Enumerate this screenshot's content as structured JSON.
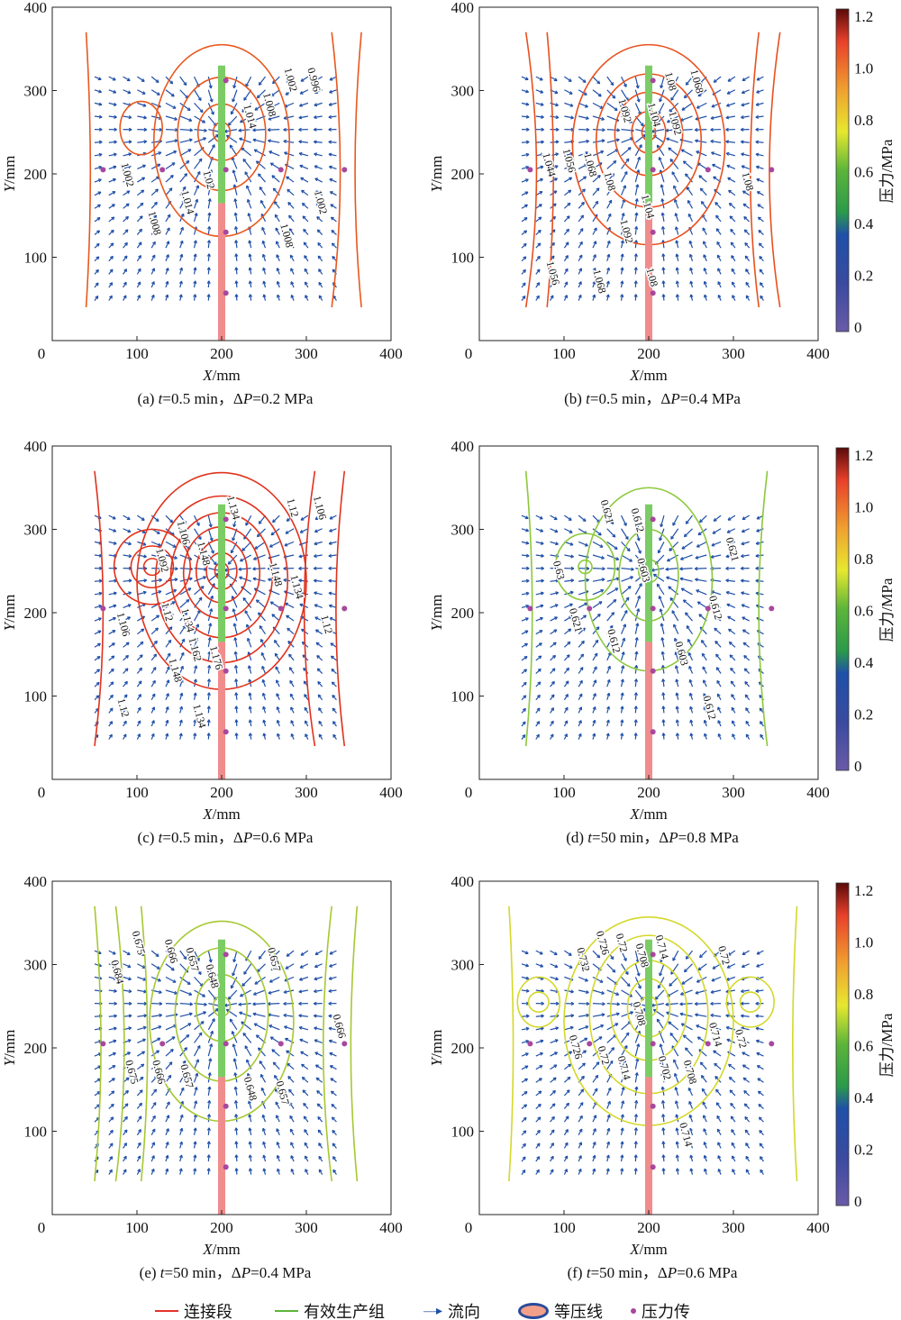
{
  "legend": {
    "connection": "连接段",
    "effective": "有效生产组",
    "flow": "流向",
    "isobar": "等压线",
    "sensor": "压力传"
  },
  "colors": {
    "connection": "#e8312a",
    "effective": "#5cb53a",
    "flow": "#1f4fa8",
    "sensor": "#a8479e"
  },
  "axis": {
    "xlabel_sym": "X",
    "xlabel_unit": "/mm",
    "ylabel_sym": "Y",
    "ylabel_unit": "/mm",
    "xticks": [
      "0",
      "100",
      "200",
      "300",
      "400"
    ],
    "yticks": [
      "100",
      "200",
      "300",
      "400"
    ]
  },
  "colorbar": {
    "label": "压力/MPa",
    "ticks": [
      "0",
      "0.2",
      "0.4",
      "0.6",
      "0.8",
      "1.0",
      "1.2"
    ]
  },
  "chart_data": [
    {
      "type": "contour",
      "tag": "(a)",
      "t_sym": "t",
      "t_val": "=0.5 min，Δ",
      "p_sym": "P",
      "p_val": "=0.2 MPa",
      "color": "#e8581e",
      "ellipses": [
        [
          200,
          250,
          10,
          12
        ],
        [
          200,
          250,
          28,
          34
        ],
        [
          200,
          248,
          52,
          68
        ],
        [
          200,
          240,
          80,
          115
        ],
        [
          105,
          255,
          25,
          32
        ]
      ],
      "vlines": [
        [
          330,
          20
        ],
        [
          365,
          -15
        ],
        [
          40,
          10
        ]
      ],
      "labels": [
        [
          "1.002",
          85,
          198
        ],
        [
          "1.02",
          181,
          192
        ],
        [
          "1.014",
          156,
          165
        ],
        [
          "1.008",
          117,
          140
        ],
        [
          "1.014",
          238,
          268
        ],
        [
          "1.008",
          254,
          282
        ],
        [
          "1.002",
          268,
          312
        ],
        [
          "0.996",
          305,
          312
        ],
        [
          "1.002",
          313,
          165
        ],
        [
          "1.008",
          273,
          125
        ]
      ]
    },
    {
      "type": "contour",
      "tag": "(b)",
      "t_sym": "t",
      "t_val": "=0.5 min，Δ",
      "p_sym": "P",
      "p_val": "=0.4 MPa",
      "color": "#e8501e",
      "ellipses": [
        [
          200,
          250,
          8,
          10
        ],
        [
          200,
          250,
          20,
          25
        ],
        [
          200,
          248,
          40,
          50
        ],
        [
          200,
          240,
          62,
          80
        ],
        [
          200,
          235,
          90,
          120
        ]
      ],
      "vlines": [
        [
          55,
          25
        ],
        [
          80,
          15
        ],
        [
          330,
          -20
        ],
        [
          355,
          -25
        ]
      ],
      "labels": [
        [
          "1.044",
          85,
          210
        ],
        [
          "1.056",
          110,
          215
        ],
        [
          "1.068",
          125,
          210
        ],
        [
          "1.08",
          138,
          190
        ],
        [
          "1.092",
          168,
          275
        ],
        [
          "1.104",
          212,
          270
        ],
        [
          "1.092",
          218,
          260
        ],
        [
          "1.08",
          222,
          310
        ],
        [
          "1.068",
          253,
          310
        ],
        [
          "1.104",
          192,
          160
        ],
        [
          "1.092",
          173,
          130
        ],
        [
          "1.08",
          200,
          75
        ],
        [
          "1.068",
          138,
          70
        ],
        [
          "1.056",
          83,
          80
        ],
        [
          "1.08",
          313,
          190
        ]
      ]
    },
    {
      "type": "contour",
      "tag": "(c)",
      "t_sym": "t",
      "t_val": "=0.5 min，Δ",
      "p_sym": "P",
      "p_val": "=0.6 MPa",
      "color": "#e0321c",
      "ellipses": [
        [
          200,
          250,
          8,
          10
        ],
        [
          200,
          250,
          18,
          22
        ],
        [
          200,
          250,
          30,
          38
        ],
        [
          200,
          248,
          45,
          55
        ],
        [
          200,
          245,
          60,
          75
        ],
        [
          200,
          240,
          78,
          100
        ],
        [
          200,
          238,
          100,
          130
        ],
        [
          118,
          255,
          10,
          10
        ],
        [
          118,
          255,
          25,
          25
        ],
        [
          118,
          255,
          45,
          45
        ]
      ],
      "vlines": [
        [
          50,
          20
        ],
        [
          310,
          -25
        ],
        [
          345,
          -20
        ]
      ],
      "labels": [
        [
          "1.106",
          80,
          185
        ],
        [
          "1.12",
          140,
          200
        ],
        [
          "1.106",
          140,
          295
        ],
        [
          "1.092",
          137,
          262
        ],
        [
          "1.134",
          210,
          325
        ],
        [
          "1.148",
          175,
          270
        ],
        [
          "1.12",
          280,
          325
        ],
        [
          "1.106",
          312,
          325
        ],
        [
          "1.148",
          260,
          245
        ],
        [
          "1.134",
          285,
          230
        ],
        [
          "1.12",
          320,
          185
        ],
        [
          "1.134",
          148,
          190
        ],
        [
          "1.162",
          158,
          155
        ],
        [
          "1.176",
          188,
          145
        ],
        [
          "1.148",
          150,
          130
        ],
        [
          "1.12",
          80,
          85
        ],
        [
          "1.134",
          170,
          75
        ]
      ]
    },
    {
      "type": "contour",
      "tag": "(d)",
      "t_sym": "t",
      "t_val": "=50 min，Δ",
      "p_sym": "P",
      "p_val": "=0.8 MPa",
      "color": "#8cc83c",
      "ellipses": [
        [
          200,
          250,
          12,
          14
        ],
        [
          200,
          245,
          35,
          55
        ],
        [
          200,
          240,
          75,
          110
        ],
        [
          125,
          255,
          8,
          8
        ],
        [
          125,
          255,
          35,
          40
        ]
      ],
      "vlines": [
        [
          55,
          15
        ],
        [
          340,
          -20
        ]
      ],
      "labels": [
        [
          "0.621",
          147,
          320
        ],
        [
          "0.612",
          183,
          310
        ],
        [
          "0.63",
          90,
          250
        ],
        [
          "0.603",
          190,
          250
        ],
        [
          "0.621",
          295,
          275
        ],
        [
          "0.612",
          275,
          205
        ],
        [
          "0.621",
          110,
          190
        ],
        [
          "0.612",
          155,
          165
        ],
        [
          "0.603",
          235,
          150
        ],
        [
          "0.612",
          268,
          85
        ]
      ]
    },
    {
      "type": "contour",
      "tag": "(e)",
      "t_sym": "t",
      "t_val": "=50 min，Δ",
      "p_sym": "P",
      "p_val": "=0.4 MPa",
      "color": "#a6c832",
      "ellipses": [
        [
          200,
          250,
          10,
          12
        ],
        [
          200,
          248,
          30,
          40
        ],
        [
          200,
          240,
          55,
          80
        ],
        [
          200,
          232,
          85,
          120
        ]
      ],
      "vlines": [
        [
          50,
          15
        ],
        [
          75,
          20
        ],
        [
          105,
          15
        ],
        [
          330,
          -20
        ],
        [
          360,
          -15
        ]
      ],
      "labels": [
        [
          "0.684",
          73,
          290
        ],
        [
          "0.675",
          98,
          325
        ],
        [
          "0.666",
          138,
          315
        ],
        [
          "0.657",
          165,
          305
        ],
        [
          "0.648",
          180,
          285
        ],
        [
          "0.657",
          258,
          305
        ],
        [
          "0.666",
          335,
          225
        ],
        [
          "0.675",
          90,
          170
        ],
        [
          "0.666",
          122,
          170
        ],
        [
          "0.657",
          155,
          165
        ],
        [
          "0.648",
          230,
          150
        ],
        [
          "0.657",
          268,
          145
        ]
      ]
    },
    {
      "type": "contour",
      "tag": "(f)",
      "t_sym": "t",
      "t_val": "=50 min，Δ",
      "p_sym": "P",
      "p_val": "=0.6 MPa",
      "color": "#d4d82a",
      "ellipses": [
        [
          200,
          250,
          10,
          12
        ],
        [
          200,
          248,
          25,
          35
        ],
        [
          200,
          245,
          45,
          60
        ],
        [
          200,
          240,
          70,
          95
        ],
        [
          200,
          232,
          100,
          125
        ],
        [
          70,
          255,
          12,
          12
        ],
        [
          70,
          255,
          25,
          30
        ],
        [
          320,
          255,
          12,
          12
        ],
        [
          320,
          255,
          28,
          30
        ]
      ],
      "vlines": [
        [
          35,
          10
        ],
        [
          375,
          -10
        ]
      ],
      "labels": [
        [
          "0.732",
          130,
          305
        ],
        [
          "0.726",
          145,
          325
        ],
        [
          "0.72",
          170,
          325
        ],
        [
          "0.714",
          190,
          320
        ],
        [
          "0.708",
          190,
          310
        ],
        [
          "0.72",
          285,
          310
        ],
        [
          "0.726",
          110,
          200
        ],
        [
          "0.72",
          145,
          190
        ],
        [
          "0.714",
          165,
          175
        ],
        [
          "0.702",
          215,
          175
        ],
        [
          "0.708",
          245,
          170
        ],
        [
          "0.714",
          275,
          215
        ],
        [
          "0.72",
          305,
          210
        ],
        [
          "0.714",
          240,
          95
        ],
        [
          "0.708",
          185,
          240
        ]
      ]
    }
  ]
}
